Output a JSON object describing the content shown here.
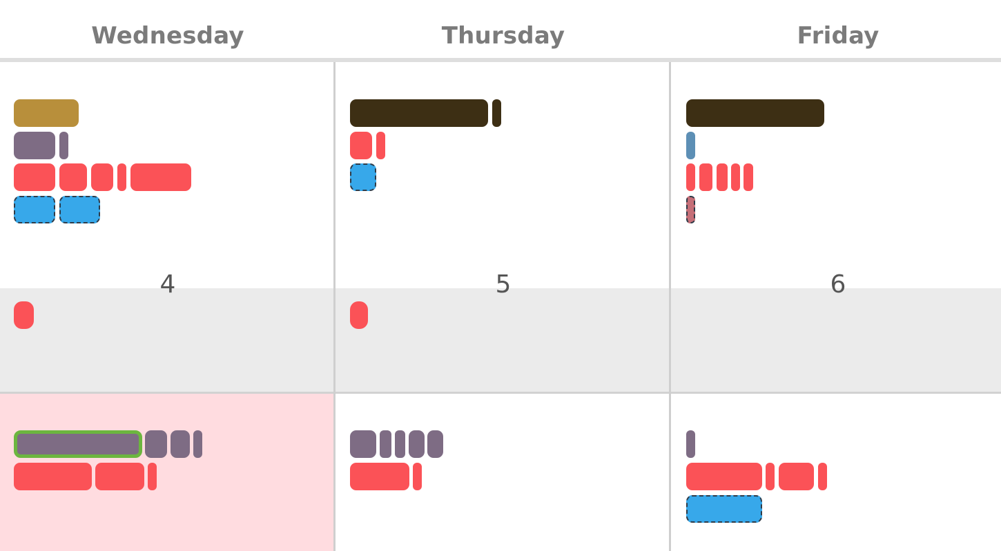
{
  "colors": {
    "gold": "#b88f3b",
    "mauve": "#7e6c84",
    "red": "#fb5257",
    "blue": "#37a8ea",
    "dark_brown": "#3d2f14",
    "steel_blue": "#5d8fb5",
    "dusty_rose": "#c56f78",
    "today_bg": "#ffdce0",
    "gray_row_bg": "#ebebeb",
    "selected_border": "#6cb63f"
  },
  "header": {
    "days": [
      {
        "label": "Wednesday"
      },
      {
        "label": "Thursday"
      },
      {
        "label": "Friday"
      }
    ]
  },
  "week_row": {
    "dates": [
      "4",
      "5",
      "6"
    ]
  }
}
